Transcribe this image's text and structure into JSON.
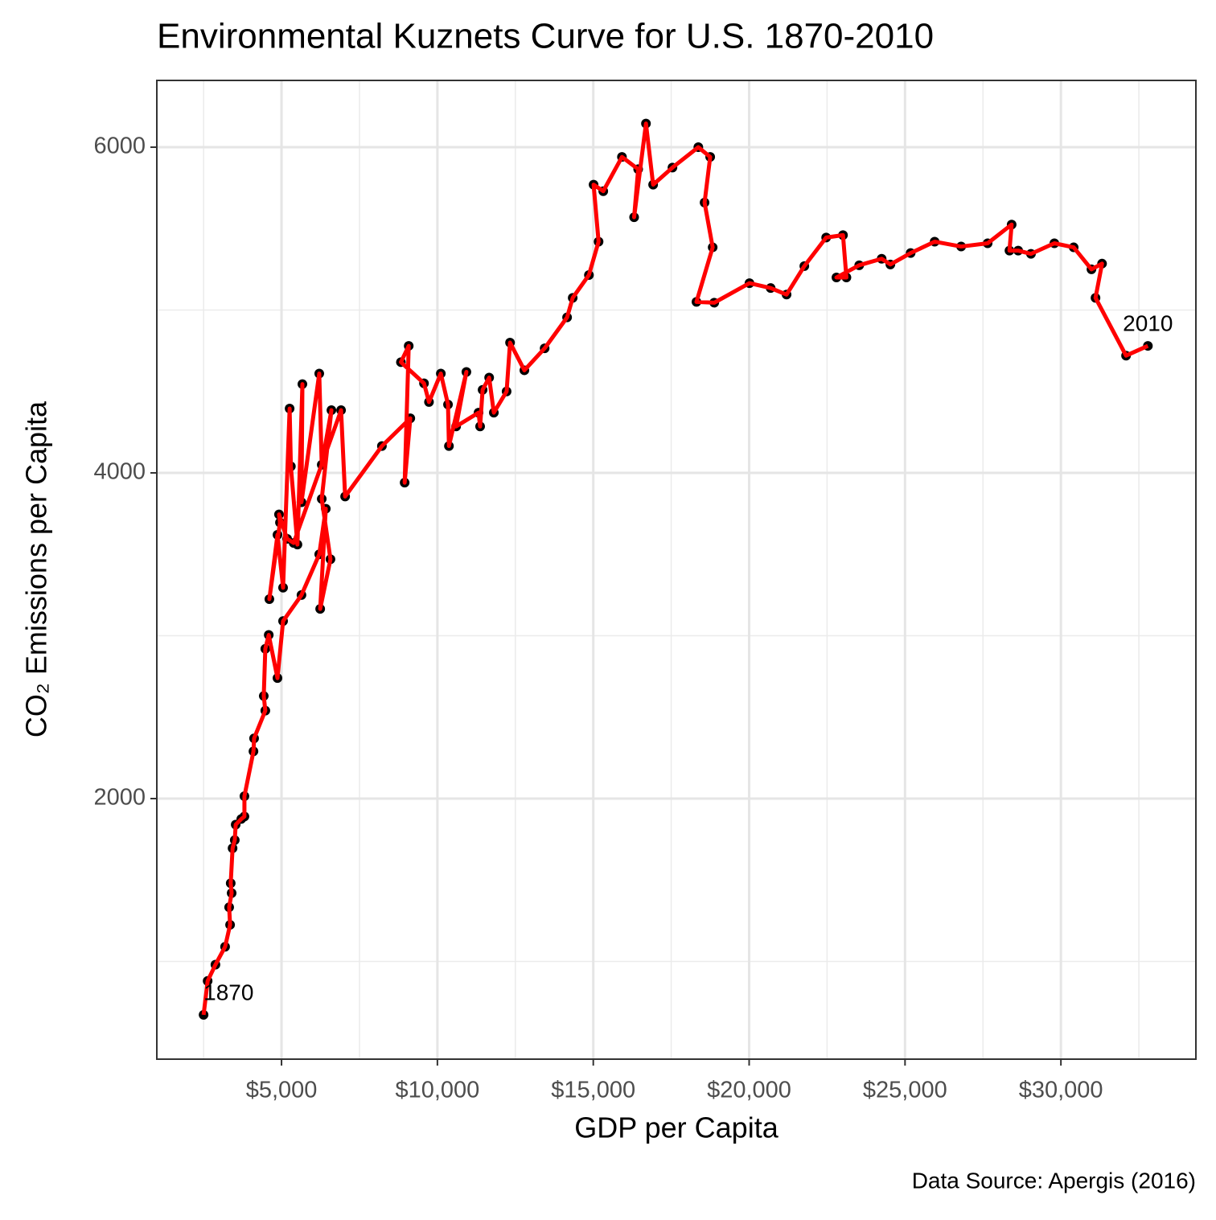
{
  "chart_data": {
    "type": "connected-scatter",
    "title": "Environmental Kuznets Curve for U.S. 1870-2010",
    "x_label": "GDP per Capita",
    "y_label": "CO₂ Emissions per Capita",
    "caption": "Data Source: Apergis (2016)",
    "x": [
      2500,
      2630,
      2880,
      3190,
      3350,
      3320,
      3400,
      3370,
      3430,
      3500,
      3530,
      3710,
      3810,
      3810,
      4100,
      4120,
      4480,
      4430,
      4480,
      4590,
      4870,
      5050,
      5640,
      6210,
      6420,
      6240,
      6570,
      6290,
      6600,
      6290,
      6210,
      5640,
      5670,
      5510,
      5300,
      5260,
      5050,
      4870,
      4610,
      4950,
      4920,
      5180,
      5390,
      6910,
      7040,
      8220,
      9130,
      8950,
      9080,
      8830,
      9570,
      9730,
      10110,
      10340,
      10370,
      10930,
      10600,
      11320,
      11370,
      11450,
      11660,
      11810,
      12220,
      12330,
      12790,
      13440,
      14160,
      14340,
      14860,
      15170,
      15010,
      15320,
      15920,
      16440,
      16310,
      16690,
      16920,
      17540,
      18370,
      18750,
      18570,
      18830,
      18310,
      18880,
      20010,
      20690,
      21200,
      21770,
      22470,
      23010,
      23120,
      22800,
      23530,
      24250,
      24530,
      25180,
      25950,
      26800,
      27650,
      28420,
      28350,
      28630,
      29040,
      29790,
      30410,
      30980,
      31320,
      31110,
      32090,
      32790
    ],
    "y": [
      672,
      880,
      980,
      1090,
      1225,
      1333,
      1420,
      1480,
      1695,
      1745,
      1840,
      1875,
      1890,
      2015,
      2290,
      2370,
      2540,
      2630,
      2920,
      3005,
      2740,
      3090,
      3250,
      3500,
      3780,
      3165,
      3470,
      3840,
      4385,
      4050,
      4610,
      3820,
      4545,
      3560,
      4040,
      4395,
      3295,
      3620,
      3225,
      3695,
      3745,
      3595,
      3570,
      4385,
      3855,
      4165,
      4335,
      3940,
      4780,
      4680,
      4550,
      4435,
      4610,
      4420,
      4165,
      4620,
      4285,
      4370,
      4285,
      4510,
      4585,
      4370,
      4500,
      4800,
      4630,
      4765,
      4955,
      5075,
      5215,
      5420,
      5770,
      5730,
      5940,
      5865,
      5570,
      6145,
      5770,
      5875,
      6000,
      5940,
      5660,
      5385,
      5050,
      5045,
      5165,
      5135,
      5095,
      5270,
      5445,
      5460,
      5200,
      5200,
      5275,
      5315,
      5280,
      5350,
      5420,
      5390,
      5410,
      5525,
      5365,
      5365,
      5345,
      5410,
      5385,
      5250,
      5285,
      5075,
      4720,
      4780
    ],
    "point_labels": [
      "1870",
      null,
      null,
      null,
      null,
      null,
      null,
      null,
      null,
      null,
      null,
      null,
      null,
      null,
      null,
      null,
      null,
      null,
      null,
      null,
      null,
      null,
      null,
      null,
      null,
      null,
      null,
      null,
      null,
      null,
      null,
      null,
      null,
      null,
      null,
      null,
      null,
      null,
      null,
      null,
      null,
      null,
      null,
      null,
      null,
      null,
      null,
      null,
      null,
      null,
      null,
      null,
      null,
      null,
      null,
      null,
      null,
      null,
      null,
      null,
      null,
      null,
      null,
      null,
      null,
      null,
      null,
      null,
      null,
      null,
      null,
      null,
      null,
      null,
      null,
      null,
      null,
      null,
      null,
      null,
      null,
      null,
      null,
      null,
      null,
      null,
      null,
      null,
      null,
      null,
      null,
      null,
      null,
      null,
      null,
      null,
      null,
      null,
      null,
      null,
      null,
      null,
      null,
      null,
      null,
      null,
      null,
      null,
      null,
      "2010"
    ],
    "line_color": "#ff0000",
    "point_color": "#000000",
    "xlim": [
      1000,
      34330
    ],
    "ylim": [
      400,
      6410
    ],
    "xticks": [
      {
        "value": 5000,
        "label": "$5,000"
      },
      {
        "value": 10000,
        "label": "$10,000"
      },
      {
        "value": 15000,
        "label": "$15,000"
      },
      {
        "value": 20000,
        "label": "$20,000"
      },
      {
        "value": 25000,
        "label": "$25,000"
      },
      {
        "value": 30000,
        "label": "$30,000"
      }
    ],
    "yticks": [
      2000,
      4000,
      6000
    ],
    "x_minor_grid": [
      2500,
      7500,
      12500,
      17500,
      22500,
      27500,
      32500
    ],
    "y_minor_grid": [
      1000,
      3000,
      5000
    ],
    "grid": true
  }
}
